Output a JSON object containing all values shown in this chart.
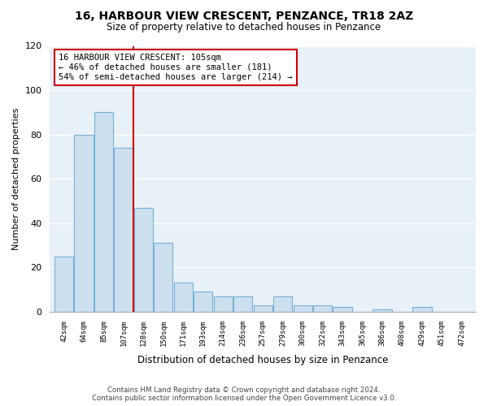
{
  "title": "16, HARBOUR VIEW CRESCENT, PENZANCE, TR18 2AZ",
  "subtitle": "Size of property relative to detached houses in Penzance",
  "xlabel": "Distribution of detached houses by size in Penzance",
  "ylabel": "Number of detached properties",
  "bar_values": [
    25,
    80,
    90,
    74,
    47,
    31,
    13,
    9,
    7,
    7,
    3,
    7,
    3,
    3,
    2,
    0,
    1,
    0,
    2,
    0,
    0
  ],
  "bar_labels": [
    "42sqm",
    "64sqm",
    "85sqm",
    "107sqm",
    "128sqm",
    "150sqm",
    "171sqm",
    "193sqm",
    "214sqm",
    "236sqm",
    "257sqm",
    "279sqm",
    "300sqm",
    "322sqm",
    "343sqm",
    "365sqm",
    "386sqm",
    "408sqm",
    "429sqm",
    "451sqm",
    "472sqm"
  ],
  "ylim": [
    0,
    120
  ],
  "yticks": [
    0,
    20,
    40,
    60,
    80,
    100,
    120
  ],
  "bar_color": "#cce0f0",
  "bar_edge_color": "#7ab0d4",
  "vline_color": "#cc0000",
  "vline_x_index": 3,
  "annotation_lines": [
    "16 HARBOUR VIEW CRESCENT: 105sqm",
    "← 46% of detached houses are smaller (181)",
    "54% of semi-detached houses are larger (214) →"
  ],
  "annotation_box_facecolor": "#ffffff",
  "annotation_box_edgecolor": "#cc0000",
  "footer_line1": "Contains HM Land Registry data © Crown copyright and database right 2024.",
  "footer_line2": "Contains public sector information licensed under the Open Government Licence v3.0.",
  "background_color": "#ffffff",
  "plot_bg_color": "#e8f0f8",
  "grid_color": "#ffffff",
  "spine_color": "#aaaaaa"
}
